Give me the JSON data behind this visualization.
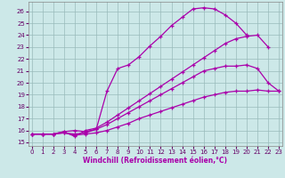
{
  "xlabel": "Windchill (Refroidissement éolien,°C)",
  "bg_color": "#cce8e8",
  "line_color": "#aa00aa",
  "grid_color": "#99bbbb",
  "x_ticks": [
    0,
    1,
    2,
    3,
    4,
    5,
    6,
    7,
    8,
    9,
    10,
    11,
    12,
    13,
    14,
    15,
    16,
    17,
    18,
    19,
    20,
    21,
    22,
    23
  ],
  "y_ticks": [
    15,
    16,
    17,
    18,
    19,
    20,
    21,
    22,
    23,
    24,
    25,
    26
  ],
  "xlim": [
    -0.3,
    23.3
  ],
  "ylim": [
    14.7,
    26.8
  ],
  "lines": [
    {
      "x": [
        0,
        1,
        2,
        3,
        4,
        5,
        6,
        7,
        8,
        9,
        10,
        11,
        12,
        13,
        14,
        15,
        16,
        17,
        18,
        19,
        20
      ],
      "y": [
        15.7,
        15.7,
        15.7,
        15.8,
        15.7,
        15.8,
        16.1,
        19.3,
        21.2,
        21.5,
        22.2,
        23.1,
        23.9,
        24.8,
        25.5,
        26.2,
        26.3,
        26.2,
        25.7,
        25.0,
        24.0
      ]
    },
    {
      "x": [
        0,
        1,
        2,
        3,
        4,
        5,
        6,
        7,
        8,
        9,
        10,
        11,
        12,
        13,
        14,
        15,
        16,
        17,
        18,
        19,
        20,
        21,
        22,
        23
      ],
      "y": [
        15.7,
        15.7,
        15.7,
        15.9,
        16.0,
        15.9,
        16.1,
        16.5,
        17.0,
        17.5,
        18.0,
        18.5,
        19.0,
        19.5,
        20.0,
        20.5,
        21.0,
        21.2,
        21.4,
        21.4,
        21.5,
        21.2,
        20.0,
        19.3
      ]
    },
    {
      "x": [
        0,
        1,
        2,
        3,
        4,
        5,
        6,
        7,
        8,
        9,
        10,
        11,
        12,
        13,
        14,
        15,
        16,
        17,
        18,
        19,
        20,
        21,
        22,
        23
      ],
      "y": [
        15.7,
        15.7,
        15.7,
        15.8,
        15.6,
        15.7,
        15.8,
        16.0,
        16.3,
        16.6,
        17.0,
        17.3,
        17.6,
        17.9,
        18.2,
        18.5,
        18.8,
        19.0,
        19.2,
        19.3,
        19.3,
        19.4,
        19.3,
        19.3
      ]
    },
    {
      "x": [
        0,
        1,
        2,
        3,
        4,
        5,
        6,
        7,
        8,
        9,
        10,
        11,
        12,
        13,
        14,
        15,
        16,
        17,
        18,
        19,
        20,
        21,
        22
      ],
      "y": [
        15.7,
        15.7,
        15.7,
        15.9,
        15.5,
        16.0,
        16.2,
        16.7,
        17.3,
        17.9,
        18.5,
        19.1,
        19.7,
        20.3,
        20.9,
        21.5,
        22.1,
        22.7,
        23.3,
        23.7,
        23.9,
        24.0,
        23.0
      ]
    }
  ],
  "tick_fontsize": 5,
  "xlabel_fontsize": 5.5,
  "tick_color": "#660066",
  "spine_color": "#888888"
}
